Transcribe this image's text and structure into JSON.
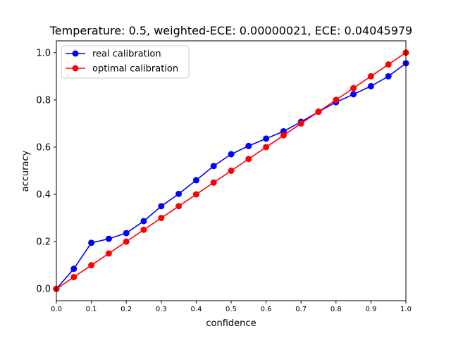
{
  "chart_data": {
    "type": "line",
    "title": "Temperature: 0.5, weighted-ECE: 0.00000021, ECE: 0.04045979",
    "xlabel": "confidence",
    "ylabel": "accuracy",
    "xlim": [
      0.0,
      1.0
    ],
    "ylim": [
      -0.05,
      1.05
    ],
    "x_ticks": [
      "0.0",
      "0.1",
      "0.2",
      "0.3",
      "0.4",
      "0.5",
      "0.6",
      "0.7",
      "0.8",
      "0.9",
      "1.0"
    ],
    "y_ticks": [
      "0.0",
      "0.2",
      "0.4",
      "0.6",
      "0.8",
      "1.0"
    ],
    "grid": false,
    "legend_position": "top-left",
    "x": [
      0.0,
      0.05,
      0.1,
      0.15,
      0.2,
      0.25,
      0.3,
      0.35,
      0.4,
      0.45,
      0.5,
      0.55,
      0.6,
      0.65,
      0.7,
      0.75,
      0.8,
      0.85,
      0.9,
      0.95,
      1.0
    ],
    "series": [
      {
        "name": "real calibration",
        "color": "#0000ff",
        "values": [
          0.0,
          0.085,
          0.195,
          0.212,
          0.236,
          0.287,
          0.35,
          0.402,
          0.46,
          0.52,
          0.57,
          0.605,
          0.636,
          0.667,
          0.707,
          0.75,
          0.79,
          0.824,
          0.858,
          0.9,
          0.955
        ]
      },
      {
        "name": "optimal calibration",
        "color": "#ff0000",
        "values": [
          0.0,
          0.05,
          0.1,
          0.15,
          0.2,
          0.25,
          0.3,
          0.35,
          0.4,
          0.45,
          0.5,
          0.55,
          0.6,
          0.65,
          0.7,
          0.75,
          0.8,
          0.85,
          0.9,
          0.95,
          1.0
        ]
      }
    ]
  }
}
